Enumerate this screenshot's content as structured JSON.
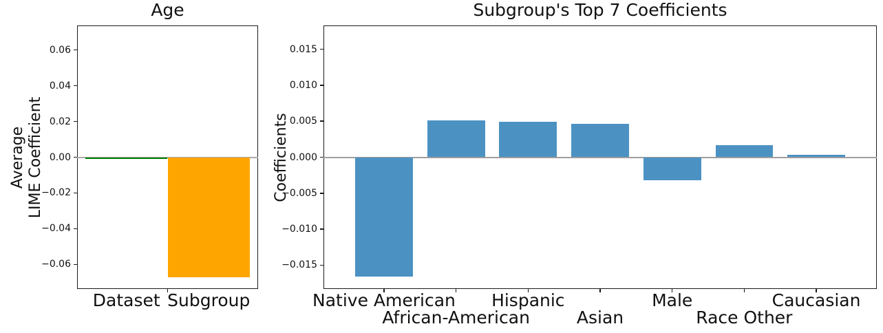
{
  "figure": {
    "background": "#ffffff",
    "text_color": "#111111"
  },
  "chart_data": [
    {
      "type": "bar",
      "title": "Age",
      "ylabel": "Average\nLIME Coefficient",
      "xlabel": "",
      "categories": [
        "Dataset",
        "Subgroup"
      ],
      "values": [
        -0.001,
        -0.067
      ],
      "colors": [
        "#008000",
        "#ffa500"
      ],
      "ylim": [
        -0.0737,
        0.0737
      ],
      "yticks": [
        0.06,
        0.04,
        0.02,
        0,
        -0.02,
        -0.04,
        -0.06
      ],
      "ytick_labels": [
        "0.06",
        "0.04",
        "0.02",
        "0.00",
        "−0.02",
        "−0.04",
        "−0.06"
      ],
      "label_rows": [
        0,
        0
      ],
      "bar_width_units": 1.0,
      "margin_units": 0.1,
      "xticks_units": [
        1.0
      ],
      "zero_line_color": "#ababab",
      "grid": false,
      "legend": null
    },
    {
      "type": "bar",
      "title": "Subgroup's Top 7 Coefficients",
      "ylabel": "Coefficients",
      "xlabel": "",
      "categories": [
        "Native American",
        "African-American",
        "Hispanic",
        "Asian",
        "Male",
        "Race Other",
        "Caucasian"
      ],
      "values": [
        -0.0166,
        0.0051,
        0.0049,
        0.0046,
        -0.0032,
        0.0017,
        0.0003
      ],
      "colors": [
        "#4b92c3",
        "#4b92c3",
        "#4b92c3",
        "#4b92c3",
        "#4b92c3",
        "#4b92c3",
        "#4b92c3"
      ],
      "ylim": [
        -0.0183,
        0.0183
      ],
      "yticks": [
        0.015,
        0.01,
        0.005,
        0,
        -0.005,
        -0.01,
        -0.015
      ],
      "ytick_labels": [
        "0.015",
        "0.010",
        "0.005",
        "0.000",
        "−0.005",
        "−0.010",
        "−0.015"
      ],
      "label_rows": [
        0,
        1,
        0,
        1,
        0,
        1,
        0
      ],
      "bar_width_units": 0.8,
      "margin_units": 0.34,
      "xticks_units": [
        0.5,
        1.5,
        2.5,
        3.5,
        4.5,
        5.5,
        6.5
      ],
      "zero_line_color": "#9e9e9e",
      "grid": false,
      "legend": null
    }
  ]
}
